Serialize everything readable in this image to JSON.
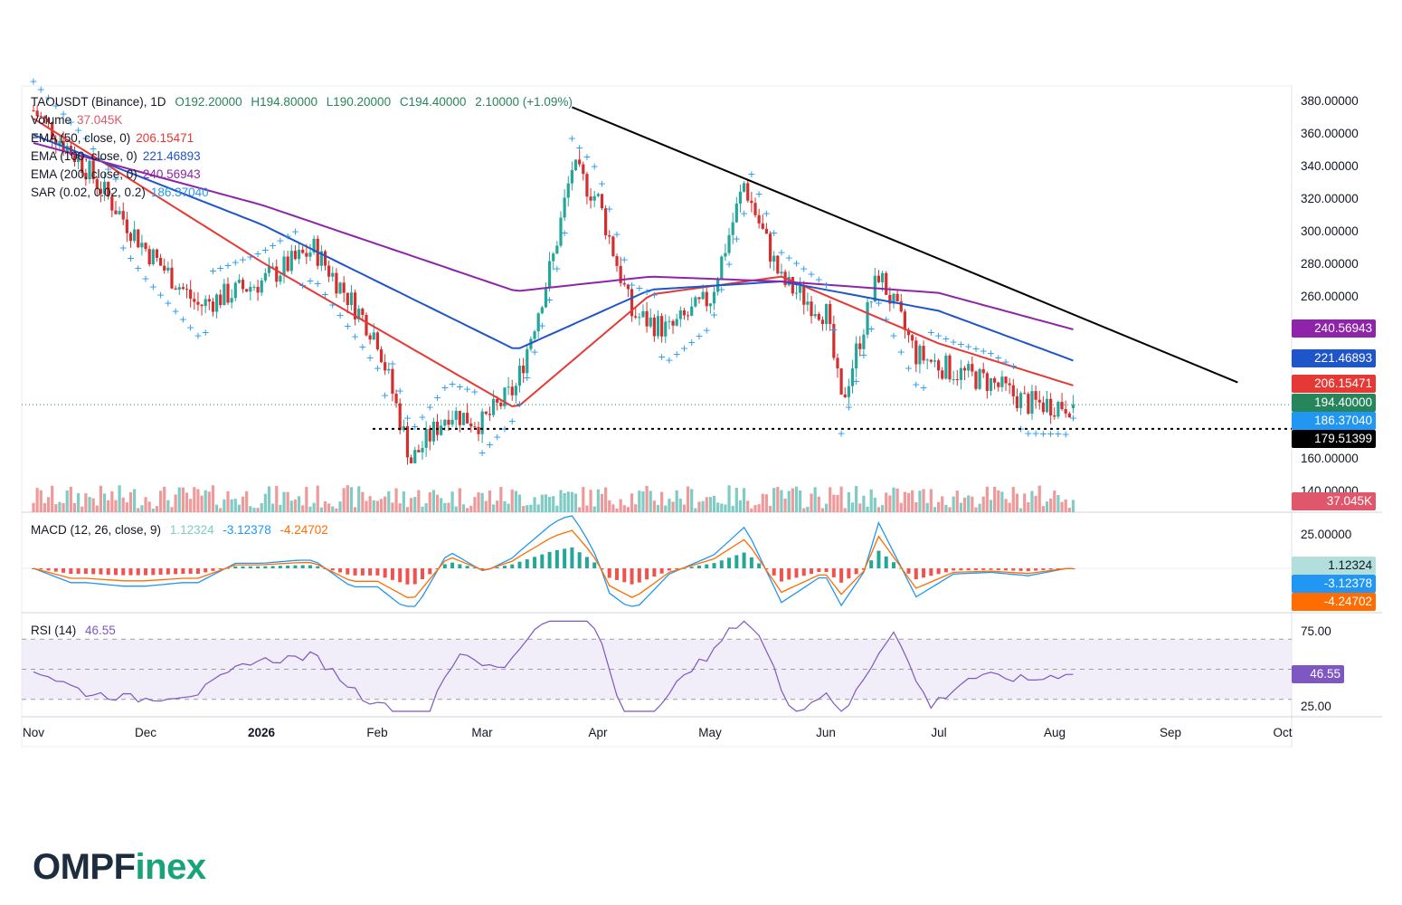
{
  "header": {
    "symbol": "TAOUSDT (Binance), 1D",
    "ohlc": {
      "o": "O192.20000",
      "h": "H194.80000",
      "l": "L190.20000",
      "c": "C194.40000",
      "change": "2.10000 (+1.09%)"
    },
    "indicators": [
      {
        "label": "Volume",
        "value": "37.045K",
        "color": "#e0566a"
      },
      {
        "label": "EMA (50, close, 0)",
        "value": "206.15471",
        "color": "#e53935"
      },
      {
        "label": "EMA (100, close, 0)",
        "value": "221.46893",
        "color": "#1e55c8"
      },
      {
        "label": "EMA (200, close, 0)",
        "value": "240.56943",
        "color": "#8e24aa"
      },
      {
        "label": "SAR (0.02, 0.02, 0.2)",
        "value": "186.37040",
        "color": "#2196f3"
      }
    ]
  },
  "price_axis": [
    "380.00000",
    "360.00000",
    "340.00000",
    "320.00000",
    "300.00000",
    "280.00000",
    "260.00000",
    "160.00000",
    "140.00000"
  ],
  "price_tags": [
    {
      "value": "240.56943",
      "color": "#8e24aa"
    },
    {
      "value": "221.46893",
      "color": "#1e55c8"
    },
    {
      "value": "206.15471",
      "color": "#e53935"
    },
    {
      "value": "194.40000",
      "color": "#26855a"
    },
    {
      "value": "186.37040",
      "color": "#2196f3"
    },
    {
      "value": "179.51399",
      "color": "#000000"
    },
    {
      "value": "37.045K",
      "color": "#e0566a"
    }
  ],
  "macd": {
    "title": "MACD (12, 26, close, 9)",
    "v1": "1.12324",
    "v2": "-3.12378",
    "v3": "-4.24702",
    "axis": [
      "25.00000"
    ],
    "tags": [
      {
        "value": "1.12324",
        "color": "#b2dfdb",
        "text": "#131722"
      },
      {
        "value": "-3.12378",
        "color": "#2196f3",
        "text": "#ffffff"
      },
      {
        "value": "-4.24702",
        "color": "#ff6d00",
        "text": "#ffffff"
      }
    ]
  },
  "rsi": {
    "title": "RSI (14)",
    "value": "46.55",
    "axis": [
      "75.00",
      "25.00"
    ],
    "tag": {
      "value": "46.55",
      "color": "#7e57c2"
    }
  },
  "time_axis": [
    "Nov",
    "Dec",
    "2026",
    "Feb",
    "Mar",
    "Apr",
    "May",
    "Jun",
    "Jul",
    "Aug",
    "Sep",
    "Oct"
  ],
  "logo": {
    "part1": "OMPF",
    "part2": "inex"
  },
  "colors": {
    "up": "#26a69a",
    "down": "#d32f2f",
    "trendline": "#000000"
  },
  "chart_data": {
    "type": "candlestick",
    "title": "TAOUSDT (Binance), 1D",
    "ylim": [
      130,
      390
    ],
    "support_level": 179.51399,
    "trendline": [
      [
        "2026-03-25",
        377
      ],
      [
        "2026-09-19",
        208
      ]
    ],
    "close_series": {
      "x": [
        "2025-11-01",
        "2025-11-15",
        "2025-12-01",
        "2025-12-15",
        "2026-01-01",
        "2026-01-15",
        "2026-02-01",
        "2026-02-10",
        "2026-02-20",
        "2026-03-01",
        "2026-03-10",
        "2026-03-20",
        "2026-03-25",
        "2026-04-01",
        "2026-04-10",
        "2026-04-20",
        "2026-05-01",
        "2026-05-10",
        "2026-05-20",
        "2026-06-01",
        "2026-06-05",
        "2026-06-15",
        "2026-06-25",
        "2026-07-05",
        "2026-07-15",
        "2026-07-25",
        "2026-08-06"
      ],
      "close": [
        375,
        340,
        290,
        255,
        270,
        290,
        235,
        160,
        190,
        183,
        205,
        285,
        340,
        320,
        250,
        240,
        260,
        330,
        270,
        250,
        195,
        275,
        225,
        215,
        208,
        195,
        194.4
      ]
    },
    "ema_50": {
      "x": [
        "2025-11-01",
        "2026-01-01",
        "2026-03-10",
        "2026-04-15",
        "2026-05-20",
        "2026-07-01",
        "2026-08-06"
      ],
      "y": [
        370,
        282,
        192,
        262,
        273,
        232,
        206.15
      ]
    },
    "ema_100": {
      "x": [
        "2025-11-01",
        "2026-01-01",
        "2026-03-10",
        "2026-04-15",
        "2026-05-20",
        "2026-07-01",
        "2026-08-06"
      ],
      "y": [
        360,
        305,
        228,
        265,
        270,
        252,
        221.47
      ]
    },
    "ema_200": {
      "x": [
        "2025-11-01",
        "2026-01-01",
        "2026-03-10",
        "2026-04-15",
        "2026-05-20",
        "2026-07-01",
        "2026-08-06"
      ],
      "y": [
        355,
        317,
        264,
        273,
        270,
        263,
        240.57
      ]
    },
    "sar_last": 186.3704,
    "rsi_last": 46.55,
    "macd_last": {
      "macd": -3.12378,
      "signal": -4.24702,
      "hist": 1.12324
    }
  }
}
